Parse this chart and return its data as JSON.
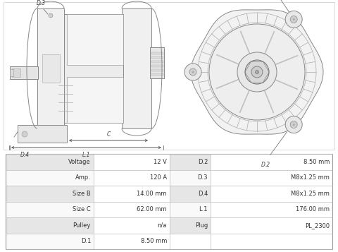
{
  "table_rows": [
    [
      "Voltage",
      "12 V",
      "D.2",
      "8.50 mm"
    ],
    [
      "Amp.",
      "120 A",
      "D.3",
      "M8x1.25 mm"
    ],
    [
      "Size B",
      "14.00 mm",
      "D.4",
      "M8x1.25 mm"
    ],
    [
      "Size C",
      "62.00 mm",
      "L.1",
      "176.00 mm"
    ],
    [
      "Pulley",
      "n/a",
      "Plug",
      "PL_2300"
    ],
    [
      "D.1",
      "8.50 mm",
      "",
      ""
    ]
  ],
  "bg_color": "#ffffff",
  "table_bg_shaded": "#e6e6e6",
  "table_bg_white": "#f9f9f9",
  "border_color": "#bbbbbb",
  "line_color": "#aaaaaa",
  "drawing_line": "#888888",
  "dim_color": "#555555",
  "label_color": "#444444"
}
